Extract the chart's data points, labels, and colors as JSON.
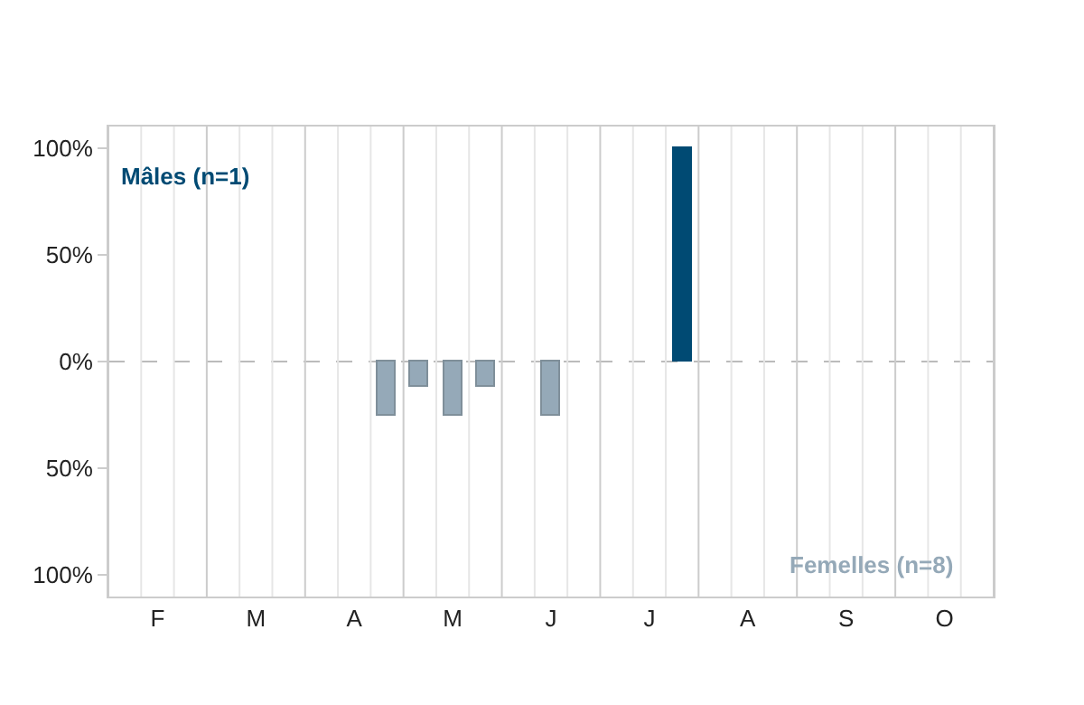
{
  "chart_data": {
    "type": "bar",
    "categories": [
      null,
      "F",
      null,
      null,
      "M",
      null,
      null,
      "A",
      null,
      null,
      "M",
      null,
      null,
      "J",
      null,
      null,
      "J",
      null,
      null,
      "A",
      null,
      null,
      "S",
      null,
      null,
      "O",
      null
    ],
    "series": [
      {
        "name": "Mâles (n=1)",
        "color": "#004a73",
        "values": [
          null,
          null,
          null,
          null,
          null,
          null,
          null,
          null,
          null,
          null,
          null,
          null,
          null,
          null,
          null,
          null,
          null,
          100,
          null,
          null,
          null,
          null,
          null,
          null,
          null,
          null,
          null
        ]
      },
      {
        "name": "Femelles (n=8)",
        "color": "#95a9b8",
        "values": [
          null,
          null,
          null,
          null,
          null,
          null,
          null,
          null,
          -25,
          -12,
          -25,
          -12,
          null,
          -25,
          null,
          null,
          null,
          null,
          null,
          null,
          null,
          null,
          null,
          null,
          null,
          null,
          null
        ]
      }
    ],
    "ylim": [
      -110,
      110
    ],
    "yticks": [
      {
        "value": 100,
        "label": "100%"
      },
      {
        "value": 50,
        "label": "50%"
      },
      {
        "value": 0,
        "label": "0%"
      },
      {
        "value": -50,
        "label": "50%"
      },
      {
        "value": -100,
        "label": "100%"
      }
    ],
    "grid": "x",
    "legend": false,
    "ref_lines": [
      {
        "axis": "y",
        "value": 0,
        "color": "#bbbbbb",
        "line_style": "dashed"
      }
    ]
  }
}
